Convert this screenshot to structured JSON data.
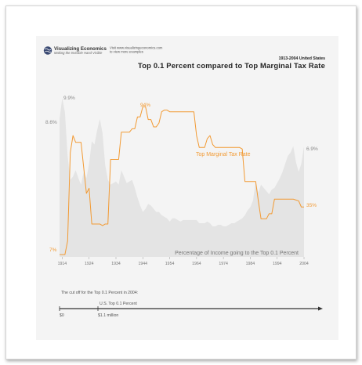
{
  "brand": {
    "name": "Visualizing Economics",
    "tagline": "Making the Invisible Hand Visible",
    "visit_line1": "Visit www.visualizingeconomics.com",
    "visit_line2": "to view more examples"
  },
  "chart_data": {
    "type": "line",
    "title": "Top 0.1 Percent compared to Top Marginal Tax Rate",
    "subtitle": "1913-2004 United States",
    "x_ticks": [
      "1914",
      "1924",
      "1934",
      "1944",
      "1954",
      "1964",
      "1974",
      "1984",
      "1994",
      "2004"
    ],
    "xlim": [
      1913,
      2004
    ],
    "series": [
      {
        "name": "Percentage of Income going to the Top 0.1 Percent",
        "kind": "area",
        "color": "#e4e4e4",
        "x": [
          1913,
          1914,
          1915,
          1916,
          1917,
          1918,
          1919,
          1920,
          1921,
          1922,
          1923,
          1924,
          1925,
          1926,
          1927,
          1928,
          1929,
          1930,
          1931,
          1932,
          1933,
          1934,
          1935,
          1936,
          1937,
          1938,
          1939,
          1940,
          1941,
          1942,
          1943,
          1944,
          1945,
          1946,
          1947,
          1948,
          1949,
          1950,
          1951,
          1952,
          1953,
          1954,
          1955,
          1956,
          1957,
          1958,
          1959,
          1960,
          1961,
          1962,
          1963,
          1964,
          1965,
          1966,
          1967,
          1968,
          1969,
          1970,
          1971,
          1972,
          1973,
          1974,
          1975,
          1976,
          1977,
          1978,
          1979,
          1980,
          1981,
          1982,
          1983,
          1984,
          1985,
          1986,
          1987,
          1988,
          1989,
          1990,
          1991,
          1992,
          1993,
          1994,
          1995,
          1996,
          1997,
          1998,
          1999,
          2000,
          2001,
          2002,
          2003,
          2004
        ],
        "values": [
          8.6,
          9.9,
          9.0,
          6.3,
          4.8,
          5.0,
          5.4,
          4.9,
          4.5,
          5.3,
          4.9,
          5.8,
          7.2,
          7.0,
          7.9,
          8.6,
          7.7,
          5.7,
          4.8,
          4.5,
          4.6,
          4.7,
          4.5,
          5.4,
          5.0,
          4.6,
          4.7,
          4.8,
          4.3,
          3.7,
          3.2,
          2.8,
          3.0,
          3.3,
          3.2,
          3.0,
          2.8,
          2.8,
          2.6,
          2.5,
          2.4,
          2.2,
          2.4,
          2.4,
          2.3,
          2.2,
          2.3,
          2.3,
          2.3,
          2.3,
          2.3,
          2.3,
          2.1,
          2.1,
          2.1,
          2.2,
          2.1,
          1.9,
          1.9,
          2.0,
          2.0,
          1.9,
          1.9,
          2.0,
          2.1,
          2.1,
          2.2,
          2.3,
          2.4,
          2.6,
          2.9,
          3.1,
          3.5,
          4.7,
          4.0,
          4.5,
          4.3,
          4.1,
          3.9,
          4.2,
          4.3,
          4.6,
          4.9,
          5.3,
          5.8,
          6.3,
          6.5,
          6.9,
          5.9,
          5.3,
          5.8,
          6.9
        ]
      },
      {
        "name": "Top Marginal Tax Rate",
        "kind": "line",
        "color": "#f29a33",
        "x": [
          1913,
          1914,
          1915,
          1916,
          1917,
          1918,
          1919,
          1920,
          1921,
          1922,
          1923,
          1924,
          1925,
          1926,
          1927,
          1928,
          1929,
          1930,
          1931,
          1932,
          1933,
          1934,
          1935,
          1936,
          1937,
          1938,
          1939,
          1940,
          1941,
          1942,
          1943,
          1944,
          1945,
          1946,
          1947,
          1948,
          1949,
          1950,
          1951,
          1952,
          1953,
          1954,
          1955,
          1956,
          1957,
          1958,
          1959,
          1960,
          1961,
          1962,
          1963,
          1964,
          1965,
          1966,
          1967,
          1968,
          1969,
          1970,
          1971,
          1972,
          1973,
          1974,
          1975,
          1976,
          1977,
          1978,
          1979,
          1980,
          1981,
          1982,
          1983,
          1984,
          1985,
          1986,
          1987,
          1988,
          1989,
          1990,
          1991,
          1992,
          1993,
          1994,
          1995,
          1996,
          1997,
          1998,
          1999,
          2000,
          2001,
          2002,
          2003,
          2004
        ],
        "values": [
          7,
          7,
          7,
          15,
          67,
          77,
          73,
          73,
          73,
          58,
          43,
          46,
          25,
          25,
          25,
          25,
          24,
          25,
          25,
          63,
          63,
          63,
          63,
          79,
          79,
          79,
          79,
          81,
          81,
          88,
          88,
          94,
          94,
          86.45,
          86.45,
          82.13,
          82.13,
          84.36,
          91,
          92,
          92,
          91,
          91,
          91,
          91,
          91,
          91,
          91,
          91,
          91,
          91,
          77,
          70,
          70,
          70,
          75.25,
          77,
          71.75,
          70,
          70,
          70,
          70,
          70,
          70,
          70,
          70,
          70,
          70,
          69.13,
          50,
          50,
          50,
          50,
          50,
          38.5,
          28,
          28,
          28,
          31,
          31,
          39.6,
          39.6,
          39.6,
          39.6,
          39.6,
          39.6,
          39.6,
          39.6,
          39.1,
          38.6,
          35,
          35
        ]
      }
    ],
    "annotations": {
      "grey_start": "8.6%",
      "grey_peak": "9.9%",
      "grey_end": "6.9%",
      "orange_start": "7%",
      "orange_peak": "94%",
      "orange_end": "35%"
    }
  },
  "cutoff": {
    "heading": "The cut off for the Top 0.1 Percent in 2004:",
    "zero_label": "$0",
    "marker_label": "U.S. Top 0.1 Percent",
    "marker_value": "$1.1 million"
  }
}
